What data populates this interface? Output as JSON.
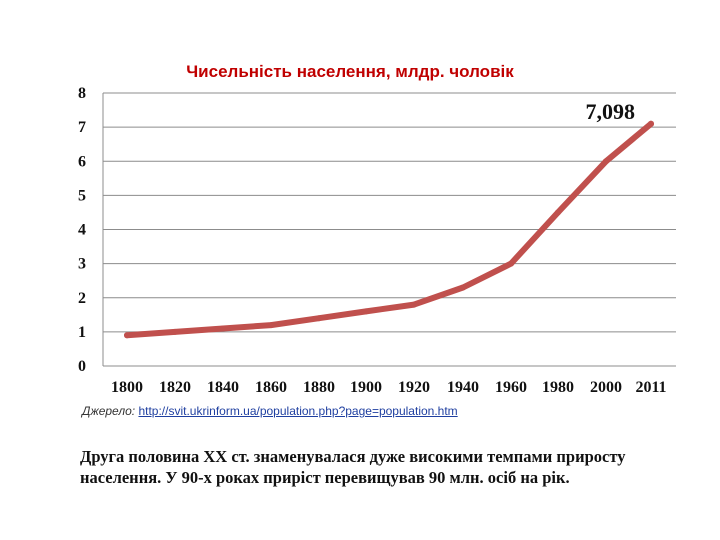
{
  "colors": {
    "line": "#c0504d",
    "title": "#c00000",
    "grid": "#8c8c8c"
  },
  "chart_data": {
    "type": "line",
    "title": "Чисельність населення, млдр. чоловік",
    "x": [
      1800,
      1820,
      1840,
      1860,
      1880,
      1900,
      1920,
      1940,
      1960,
      1980,
      2000,
      2011
    ],
    "x_labels": [
      "1800",
      "1820",
      "1840",
      "1860",
      "1880",
      "1900",
      "1920",
      "1940",
      "1960",
      "1980",
      "2000",
      "2011"
    ],
    "series": [
      {
        "values": [
          0.9,
          1.0,
          1.1,
          1.2,
          1.4,
          1.6,
          1.8,
          2.3,
          3.0,
          4.5,
          6.0,
          7.098
        ]
      }
    ],
    "ylim": [
      0,
      8
    ],
    "yticks": [
      0,
      1,
      2,
      3,
      4,
      5,
      6,
      7,
      8
    ],
    "grid": true,
    "annotation": {
      "text": "7,098",
      "x": 2011,
      "y": 7.098
    }
  },
  "source": {
    "label": "Джерело:",
    "url": "http://svit.ukrinform.ua/population.php?page=population.htm"
  },
  "caption": "Друга половина ХХ ст. знаменувалася дуже високими темпами приросту населення. У 90-х роках приріст перевищував 90 млн. осіб на рік."
}
